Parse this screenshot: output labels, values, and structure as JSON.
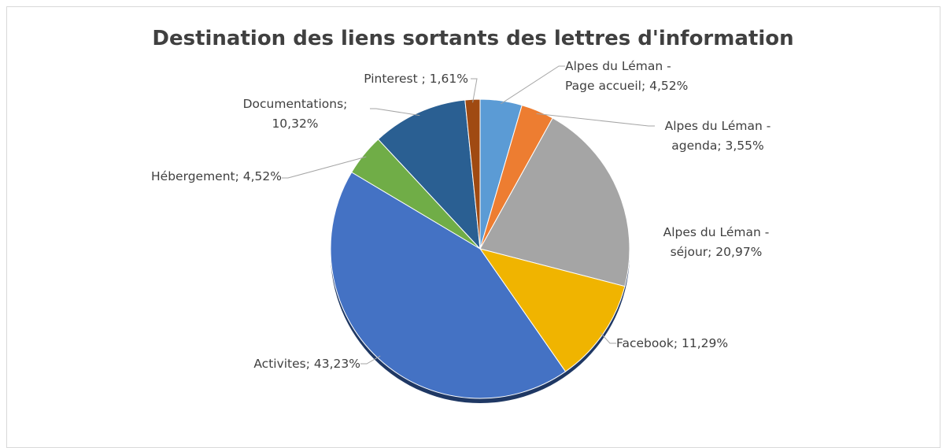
{
  "chart_data": {
    "type": "pie",
    "title": "Destination des liens sortants des lettres d'information",
    "categories": [
      "Alpes du Léman - Page accueil",
      "Alpes du Léman - agenda",
      "Alpes du Léman - séjour",
      "Facebook",
      "Activites",
      "Hébergement",
      "Documentations",
      "Pinterest"
    ],
    "values": [
      4.52,
      3.55,
      20.97,
      11.29,
      43.23,
      4.52,
      10.32,
      1.61
    ],
    "value_labels": [
      "Alpes du Léman - Page accueil; 4,52%",
      "Alpes du Léman - agenda; 3,55%",
      "Alpes du Léman - séjour; 20,97%",
      "Facebook; 11,29%",
      "Activites; 43,23%",
      "Hébergement; 4,52%",
      "Documentations; 10,32%",
      "Pinterest ; 1,61%"
    ],
    "colors": [
      "#5b9bd5",
      "#ed7d31",
      "#a5a5a5",
      "#f0b400",
      "#4472c4",
      "#70ad47",
      "#2a5f92",
      "#a04a12"
    ]
  }
}
